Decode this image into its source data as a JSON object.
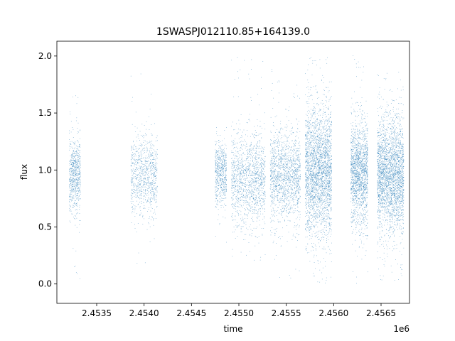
{
  "chart_data": {
    "type": "scatter",
    "title": "1SWASPJ012110.85+164139.0",
    "xlabel": "time",
    "ylabel": "flux",
    "x_offset_label": "1e6",
    "xlim": [
      2.45308,
      2.4568
    ],
    "ylim": [
      -0.17,
      2.13
    ],
    "x_ticks": [
      2.4535,
      2.454,
      2.4545,
      2.455,
      2.4555,
      2.456,
      2.4565
    ],
    "x_tick_labels": [
      "2.4535",
      "2.4540",
      "2.4545",
      "2.4550",
      "2.4555",
      "2.4560",
      "2.4565"
    ],
    "y_ticks": [
      0.0,
      0.5,
      1.0,
      1.5,
      2.0
    ],
    "y_tick_labels": [
      "0.0",
      "0.5",
      "1.0",
      "1.5",
      "2.0"
    ],
    "grid": false,
    "marker_color": "#1f77b4",
    "series": [
      {
        "clusters": [
          {
            "x_center": 2.45327,
            "x_width": 6e-05,
            "y_center": 0.95,
            "y_spread": 0.16,
            "y_min": -0.06,
            "y_max": 1.75,
            "n": 700
          },
          {
            "x_center": 2.454,
            "x_width": 0.00014,
            "y_center": 0.95,
            "y_spread": 0.18,
            "y_min": 0.0,
            "y_max": 2.02,
            "n": 900
          },
          {
            "x_center": 2.45481,
            "x_width": 6e-05,
            "y_center": 0.97,
            "y_spread": 0.14,
            "y_min": 0.35,
            "y_max": 1.45,
            "n": 600
          },
          {
            "x_center": 2.4551,
            "x_width": 0.00018,
            "y_center": 0.92,
            "y_spread": 0.2,
            "y_min": 0.05,
            "y_max": 2.03,
            "n": 1400
          },
          {
            "x_center": 2.45549,
            "x_width": 0.00016,
            "y_center": 0.95,
            "y_spread": 0.2,
            "y_min": 0.05,
            "y_max": 1.9,
            "n": 1500
          },
          {
            "x_center": 2.45584,
            "x_width": 0.00014,
            "y_center": 1.0,
            "y_spread": 0.28,
            "y_min": 0.0,
            "y_max": 2.03,
            "n": 2800
          },
          {
            "x_center": 2.45627,
            "x_width": 9e-05,
            "y_center": 0.97,
            "y_spread": 0.22,
            "y_min": 0.0,
            "y_max": 2.02,
            "n": 1700
          },
          {
            "x_center": 2.4566,
            "x_width": 0.00014,
            "y_center": 0.95,
            "y_spread": 0.25,
            "y_min": 0.0,
            "y_max": 1.9,
            "n": 2800
          }
        ]
      }
    ]
  }
}
